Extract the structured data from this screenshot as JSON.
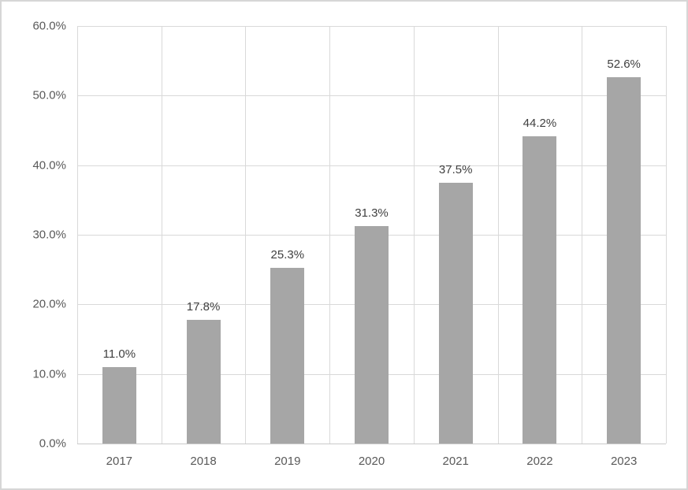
{
  "chart_data": {
    "type": "bar",
    "title": "",
    "xlabel": "",
    "ylabel": "",
    "categories": [
      "2017",
      "2018",
      "2019",
      "2020",
      "2021",
      "2022",
      "2023"
    ],
    "values": [
      11.0,
      17.8,
      25.3,
      31.3,
      37.5,
      44.2,
      52.6
    ],
    "data_labels": [
      "11.0%",
      "17.8%",
      "25.3%",
      "31.3%",
      "37.5%",
      "44.2%",
      "52.6%"
    ],
    "ylim": [
      0,
      60
    ],
    "y_tick_step": 10,
    "y_tick_labels": [
      "0.0%",
      "10.0%",
      "20.0%",
      "30.0%",
      "40.0%",
      "50.0%",
      "60.0%"
    ],
    "grid": "both",
    "legend": "none",
    "colors": {
      "bar_fill": "#a6a6a6",
      "gridline": "#d9d9d9",
      "axis_line": "#c9c9c9",
      "tick_label": "#595959",
      "data_label": "#404040",
      "frame_border": "#d6d6d6",
      "background": "#ffffff"
    }
  }
}
